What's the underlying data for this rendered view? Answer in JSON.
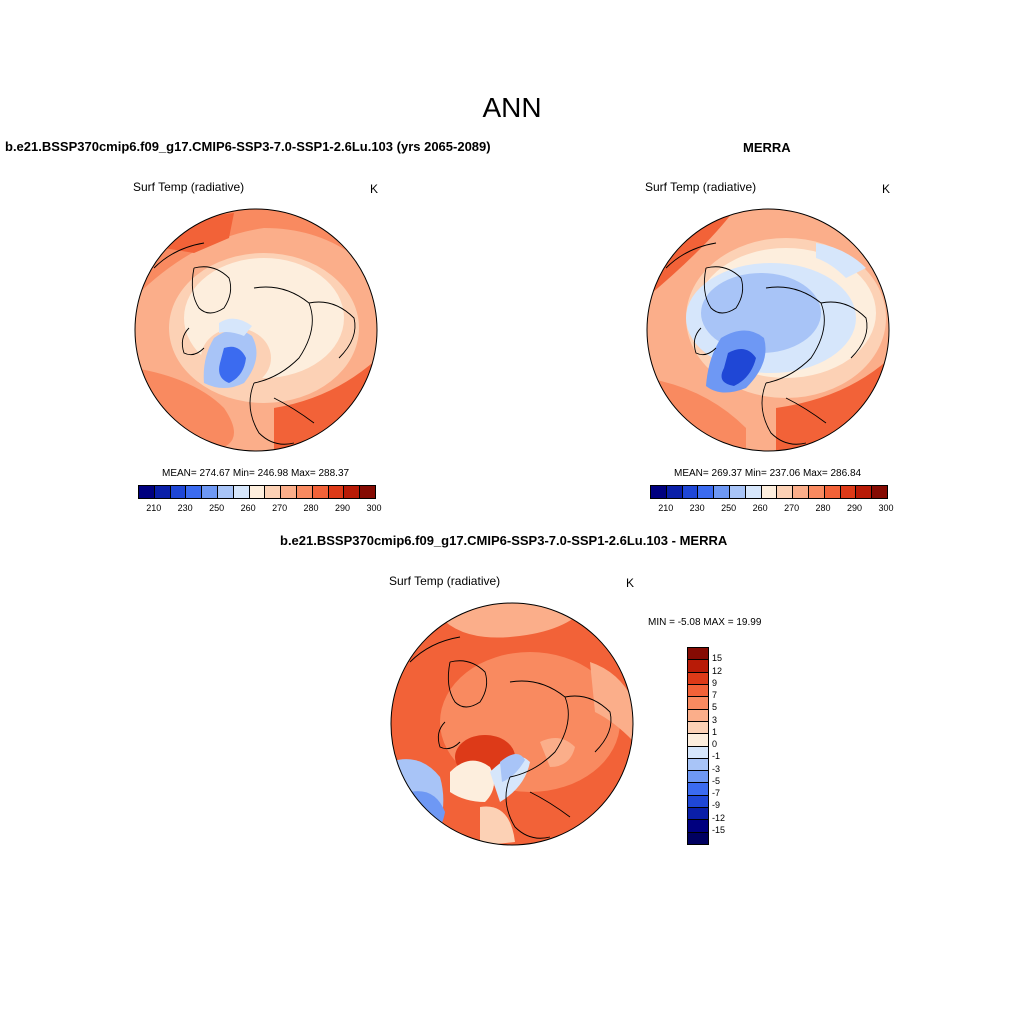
{
  "figure": {
    "title": "ANN"
  },
  "panels": [
    {
      "title": "b.e21.BSSP370cmip6.f09_g17.CMIP6-SSP3-7.0-SSP1-2.6Lu.103 (yrs 2065-2089)",
      "variable": "Surf Temp (radiative)",
      "units": "K",
      "stats": "MEAN= 274.67  Min= 246.98  Max= 288.37",
      "colorbar": {
        "colors": [
          "#00007f",
          "#0a1fa8",
          "#1f47d6",
          "#3b6bf0",
          "#6e98f4",
          "#a8c4f7",
          "#d6e6fb",
          "#fdeedd",
          "#fcd1b5",
          "#fbae8a",
          "#f98a60",
          "#f26238",
          "#dd3a18",
          "#b81b07",
          "#850b03"
        ],
        "tick_labels": [
          "210",
          "230",
          "250",
          "260",
          "270",
          "280",
          "290",
          "300"
        ]
      }
    },
    {
      "title": "MERRA",
      "variable": "Surf Temp (radiative)",
      "units": "K",
      "stats": "MEAN= 269.37  Min= 237.06  Max= 286.84",
      "colorbar": {
        "colors": [
          "#00007f",
          "#0a1fa8",
          "#1f47d6",
          "#3b6bf0",
          "#6e98f4",
          "#a8c4f7",
          "#d6e6fb",
          "#fdeedd",
          "#fcd1b5",
          "#fbae8a",
          "#f98a60",
          "#f26238",
          "#dd3a18",
          "#b81b07",
          "#850b03"
        ],
        "tick_labels": [
          "210",
          "230",
          "250",
          "260",
          "270",
          "280",
          "290",
          "300"
        ]
      }
    },
    {
      "title": "b.e21.BSSP370cmip6.f09_g17.CMIP6-SSP3-7.0-SSP1-2.6Lu.103 - MERRA",
      "variable": "Surf Temp (radiative)",
      "units": "K",
      "stats": "MIN =  -5.08 MAX =  19.99",
      "colorbar": {
        "colors": [
          "#850b03",
          "#b81b07",
          "#dd3a18",
          "#f26238",
          "#f98a60",
          "#fbae8a",
          "#fcd1b5",
          "#fdeedd",
          "#d6e6fb",
          "#a8c4f7",
          "#6e98f4",
          "#3b6bf0",
          "#1f47d6",
          "#0a1fa8",
          "#00007f",
          "#000060"
        ],
        "tick_labels": [
          "15",
          "12",
          "9",
          "7",
          "5",
          "3",
          "1",
          "0",
          "-1",
          "-3",
          "-5",
          "-7",
          "-9",
          "-12",
          "-15"
        ]
      }
    }
  ]
}
